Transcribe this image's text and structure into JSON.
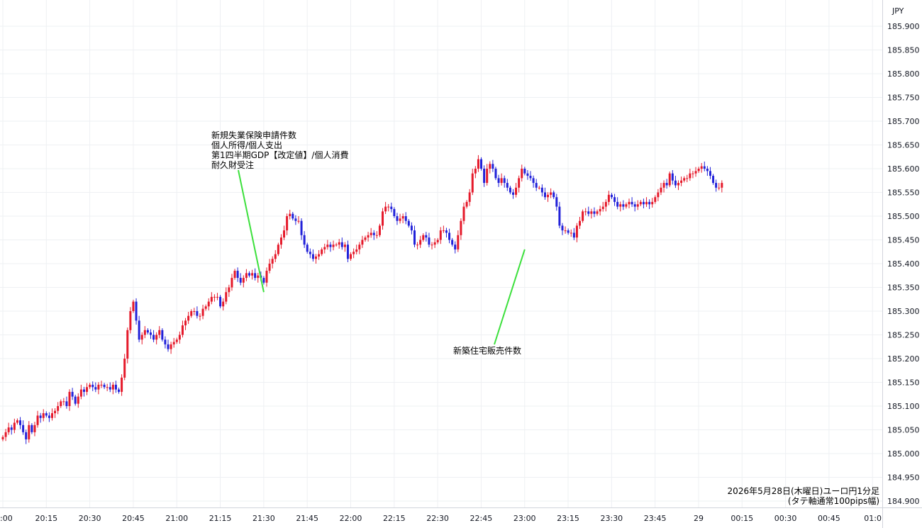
{
  "chart_data": {
    "type": "candlestick",
    "symbol_caption": [
      "2026年5月28日(木曜日)ユーロ円1分足",
      "(タテ軸通常100pips幅)"
    ],
    "price_axis": {
      "currency_label": "JPY",
      "ylim": [
        184.88,
        185.92
      ],
      "ticks": [
        "185.900",
        "185.850",
        "185.800",
        "185.750",
        "185.700",
        "185.650",
        "185.600",
        "185.550",
        "185.500",
        "185.450",
        "185.400",
        "185.350",
        "185.300",
        "185.250",
        "185.200",
        "185.150",
        "185.100",
        "185.050",
        "185.000",
        "184.950",
        "184.900"
      ]
    },
    "time_axis": {
      "ticks": [
        ":00",
        "20:15",
        "20:30",
        "20:45",
        "21:00",
        "21:15",
        "21:30",
        "21:45",
        "22:00",
        "22:15",
        "22:30",
        "22:45",
        "23:00",
        "23:15",
        "23:30",
        "23:45",
        "29",
        "00:15",
        "00:30",
        "00:45",
        "01:0"
      ]
    },
    "grid": true,
    "colors": {
      "up": "#e5192a",
      "down": "#2121d9",
      "annotation_line": "#3ce03c",
      "grid": "#eef0f3",
      "axis": "#131722"
    },
    "annotations": [
      {
        "lines": [
          "新規失業保険申請件数",
          "個人所得/個人支出",
          "第1四半期GDP【改定値】/個人消費",
          "耐久財受注"
        ],
        "time": "21:30",
        "price": 185.34
      },
      {
        "lines": [
          "新築住宅販売件数"
        ],
        "time": "23:00",
        "price": 185.43
      }
    ],
    "closes": [
      185.035,
      185.045,
      185.055,
      185.05,
      185.065,
      185.07,
      185.06,
      185.045,
      185.03,
      185.06,
      185.045,
      185.06,
      185.08,
      185.075,
      185.085,
      185.08,
      185.075,
      185.085,
      185.09,
      185.1,
      185.11,
      185.11,
      185.1,
      185.13,
      185.12,
      185.105,
      185.12,
      185.135,
      185.13,
      185.14,
      185.145,
      185.14,
      185.135,
      185.145,
      185.145,
      185.14,
      185.14,
      185.135,
      185.145,
      185.135,
      185.13,
      185.16,
      185.2,
      185.26,
      185.3,
      185.32,
      185.28,
      185.24,
      185.25,
      185.26,
      185.255,
      185.25,
      185.24,
      185.25,
      185.26,
      185.24,
      185.23,
      185.22,
      185.23,
      185.235,
      185.24,
      185.25,
      185.27,
      185.28,
      185.29,
      185.3,
      185.3,
      185.29,
      185.29,
      185.305,
      185.31,
      185.32,
      185.33,
      185.33,
      185.33,
      185.31,
      185.32,
      185.34,
      185.35,
      185.37,
      185.385,
      185.37,
      185.36,
      185.37,
      185.38,
      185.375,
      185.38,
      185.37,
      185.375,
      185.37,
      185.36,
      185.385,
      185.4,
      185.41,
      185.42,
      185.44,
      185.455,
      185.47,
      185.5,
      185.505,
      185.495,
      185.49,
      185.49,
      185.46,
      185.44,
      185.425,
      185.42,
      185.41,
      185.415,
      185.42,
      185.43,
      185.435,
      185.44,
      185.435,
      185.44,
      185.44,
      185.445,
      185.435,
      185.44,
      185.41,
      185.42,
      185.425,
      185.43,
      185.44,
      185.45,
      185.455,
      185.46,
      185.465,
      185.46,
      185.46,
      185.48,
      185.51,
      185.52,
      185.52,
      185.515,
      185.5,
      185.49,
      185.495,
      185.5,
      185.49,
      185.48,
      185.47,
      185.44,
      185.44,
      185.45,
      185.46,
      185.455,
      185.44,
      185.44,
      185.445,
      185.45,
      185.47,
      185.47,
      185.465,
      185.45,
      185.44,
      185.43,
      185.46,
      185.49,
      185.52,
      185.53,
      185.55,
      185.59,
      185.6,
      185.62,
      185.6,
      185.57,
      185.6,
      185.61,
      185.6,
      185.58,
      185.57,
      185.58,
      185.57,
      185.56,
      185.55,
      185.545,
      185.56,
      185.58,
      185.6,
      185.59,
      185.585,
      185.58,
      185.57,
      185.56,
      185.56,
      185.55,
      185.54,
      185.545,
      185.55,
      185.54,
      185.52,
      185.48,
      185.47,
      185.47,
      185.465,
      185.465,
      185.455,
      185.48,
      185.49,
      185.51,
      185.51,
      185.505,
      185.51,
      185.505,
      185.51,
      185.515,
      185.52,
      185.53,
      185.545,
      185.54,
      185.53,
      185.52,
      185.525,
      185.52,
      185.525,
      185.53,
      185.525,
      185.52,
      185.525,
      185.53,
      185.525,
      185.53,
      185.525,
      185.53,
      185.54,
      185.55,
      185.56,
      185.57,
      185.565,
      185.59,
      185.575,
      185.565,
      185.57,
      185.575,
      185.58,
      185.58,
      185.59,
      185.59,
      185.595,
      185.6,
      185.605,
      185.6,
      185.595,
      185.585,
      185.57,
      185.56,
      185.56,
      185.57
    ]
  }
}
